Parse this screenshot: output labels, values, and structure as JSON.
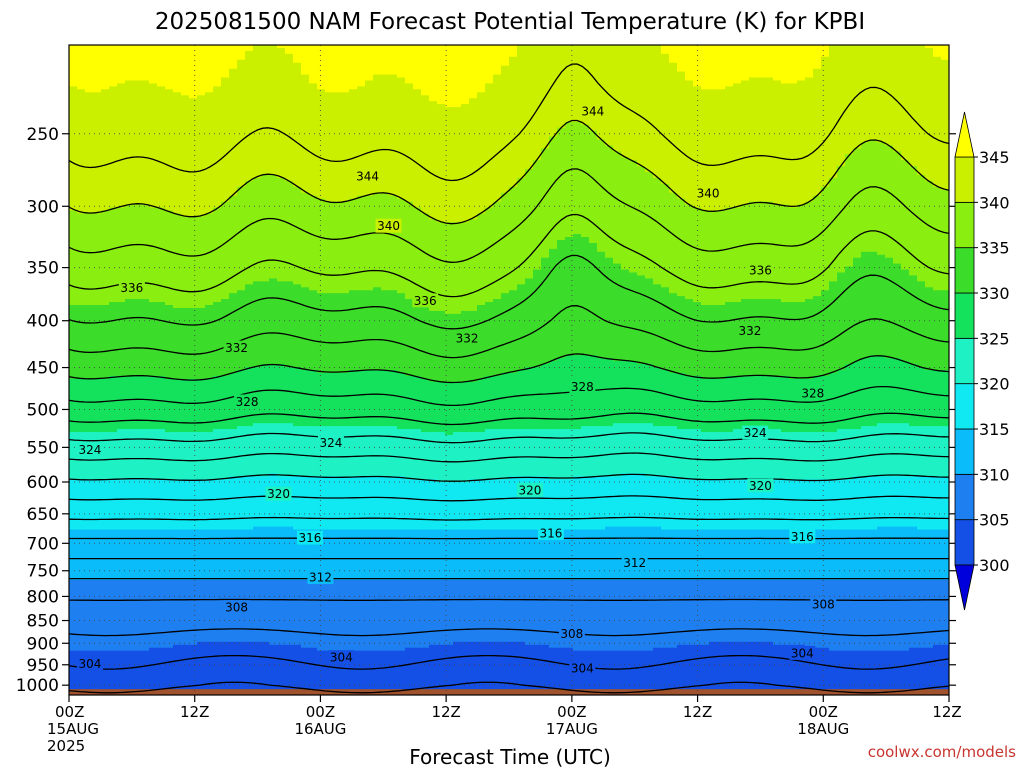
{
  "chart_data": {
    "type": "heatmap",
    "title": "2025081500 NAM Forecast Potential Temperature (K) for KPBI",
    "xlabel": "Forecast Time (UTC)",
    "ylabel": "",
    "x_ticks": [
      {
        "hour": 0,
        "line1": "00Z",
        "line2": "15AUG",
        "line3": "2025"
      },
      {
        "hour": 12,
        "line1": "12Z",
        "line2": "",
        "line3": ""
      },
      {
        "hour": 24,
        "line1": "00Z",
        "line2": "16AUG",
        "line3": ""
      },
      {
        "hour": 36,
        "line1": "12Z",
        "line2": "",
        "line3": ""
      },
      {
        "hour": 48,
        "line1": "00Z",
        "line2": "17AUG",
        "line3": ""
      },
      {
        "hour": 60,
        "line1": "12Z",
        "line2": "",
        "line3": ""
      },
      {
        "hour": 72,
        "line1": "00Z",
        "line2": "18AUG",
        "line3": ""
      },
      {
        "hour": 84,
        "line1": "12Z",
        "line2": "",
        "line3": ""
      }
    ],
    "xlim_hours": [
      0,
      84
    ],
    "y_scale": "log",
    "ylim_hpa": [
      1025,
      200
    ],
    "y_ticks": [
      250,
      300,
      350,
      400,
      450,
      500,
      550,
      600,
      650,
      700,
      750,
      800,
      850,
      900,
      950,
      1000
    ],
    "grid": true,
    "colorbar": {
      "levels": [
        300,
        305,
        310,
        315,
        320,
        325,
        330,
        335,
        340,
        345
      ],
      "labels": [
        "300",
        "305",
        "310",
        "315",
        "320",
        "325",
        "330",
        "335",
        "340",
        "345"
      ],
      "colors": [
        "#0000dd",
        "#1450e6",
        "#1e7ff0",
        "#0abcfa",
        "#10e8f2",
        "#1ef2c4",
        "#15e25c",
        "#3cdc2a",
        "#8aee10",
        "#caf000",
        "#ffff00"
      ],
      "extend": "both"
    },
    "ground_color": "#a0522d",
    "isotherm_labels": [
      {
        "value": 344,
        "text": "344",
        "hour": 50,
        "hpa": 236
      },
      {
        "value": 344,
        "text": "344",
        "hour": 28.5,
        "hpa": 278
      },
      {
        "value": 340,
        "text": "340",
        "hour": 30.5,
        "hpa": 315
      },
      {
        "value": 340,
        "text": "340",
        "hour": 61,
        "hpa": 290
      },
      {
        "value": 336,
        "text": "336",
        "hour": 6,
        "hpa": 368
      },
      {
        "value": 336,
        "text": "336",
        "hour": 34,
        "hpa": 380
      },
      {
        "value": 336,
        "text": "336",
        "hour": 66,
        "hpa": 352
      },
      {
        "value": 332,
        "text": "332",
        "hour": 16,
        "hpa": 428
      },
      {
        "value": 332,
        "text": "332",
        "hour": 38,
        "hpa": 418
      },
      {
        "value": 332,
        "text": "332",
        "hour": 65,
        "hpa": 410
      },
      {
        "value": 328,
        "text": "328",
        "hour": 17,
        "hpa": 490
      },
      {
        "value": 328,
        "text": "328",
        "hour": 49,
        "hpa": 472
      },
      {
        "value": 328,
        "text": "328",
        "hour": 71,
        "hpa": 480
      },
      {
        "value": 324,
        "text": "324",
        "hour": 2,
        "hpa": 553
      },
      {
        "value": 324,
        "text": "324",
        "hour": 25,
        "hpa": 543
      },
      {
        "value": 324,
        "text": "324",
        "hour": 65.5,
        "hpa": 530
      },
      {
        "value": 320,
        "text": "320",
        "hour": 20,
        "hpa": 618
      },
      {
        "value": 320,
        "text": "320",
        "hour": 44,
        "hpa": 612
      },
      {
        "value": 320,
        "text": "320",
        "hour": 66,
        "hpa": 605
      },
      {
        "value": 316,
        "text": "316",
        "hour": 23,
        "hpa": 690
      },
      {
        "value": 316,
        "text": "316",
        "hour": 46,
        "hpa": 682
      },
      {
        "value": 316,
        "text": "316",
        "hour": 70,
        "hpa": 688
      },
      {
        "value": 312,
        "text": "312",
        "hour": 24,
        "hpa": 762
      },
      {
        "value": 312,
        "text": "312",
        "hour": 54,
        "hpa": 735
      },
      {
        "value": 308,
        "text": "308",
        "hour": 16,
        "hpa": 822
      },
      {
        "value": 308,
        "text": "308",
        "hour": 48,
        "hpa": 878
      },
      {
        "value": 308,
        "text": "308",
        "hour": 72,
        "hpa": 815
      },
      {
        "value": 304,
        "text": "304",
        "hour": 2,
        "hpa": 947
      },
      {
        "value": 304,
        "text": "304",
        "hour": 26,
        "hpa": 932
      },
      {
        "value": 304,
        "text": "304",
        "hour": 49,
        "hpa": 958
      },
      {
        "value": 304,
        "text": "304",
        "hour": 70,
        "hpa": 922
      }
    ]
  },
  "footer": {
    "credit": "coolwx.com/models"
  }
}
